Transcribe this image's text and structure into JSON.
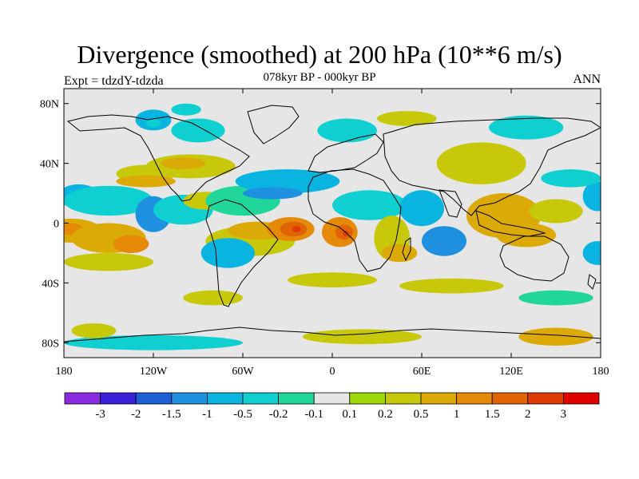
{
  "chart_data": {
    "type": "heatmap",
    "title": "Divergence (smoothed) at 200 hPa (10**6 m/s)",
    "subtitle": "078kyr BP - 000kyr BP",
    "left_label": "Expt = tdzdY-tdzda",
    "right_label": "ANN",
    "x_range": [
      -180,
      180
    ],
    "y_range": [
      -90,
      90
    ],
    "x_ticks": [
      {
        "value": -180,
        "label": "180"
      },
      {
        "value": -120,
        "label": "120W"
      },
      {
        "value": -60,
        "label": "60W"
      },
      {
        "value": 0,
        "label": "0"
      },
      {
        "value": 60,
        "label": "60E"
      },
      {
        "value": 120,
        "label": "120E"
      },
      {
        "value": 180,
        "label": "180"
      }
    ],
    "y_ticks": [
      {
        "value": 80,
        "label": "80N"
      },
      {
        "value": 40,
        "label": "40N"
      },
      {
        "value": 0,
        "label": "0"
      },
      {
        "value": -40,
        "label": "40S"
      },
      {
        "value": -80,
        "label": "80S"
      }
    ],
    "colorbar": {
      "levels": [
        "-3",
        "-2",
        "-1.5",
        "-1",
        "-0.5",
        "-0.2",
        "-0.1",
        "0.1",
        "0.2",
        "0.5",
        "1",
        "1.5",
        "2",
        "3"
      ],
      "colors": [
        "#8a2be2",
        "#3a1fd8",
        "#1e5fd6",
        "#1f8fe0",
        "#0ab4e0",
        "#10cfd0",
        "#20d69a",
        "#e6e6e6",
        "#9cd80a",
        "#c8c80a",
        "#dcaa06",
        "#e48a06",
        "#e06406",
        "#e03a06",
        "#e00000"
      ]
    },
    "blobs": [
      {
        "lon": -175,
        "lat": -5,
        "rx": 20,
        "ry": 8,
        "level": 10
      },
      {
        "lon": -175,
        "lat": -4,
        "rx": 8,
        "ry": 4,
        "level": 11
      },
      {
        "lon": -150,
        "lat": -10,
        "rx": 25,
        "ry": 10,
        "level": 10
      },
      {
        "lon": -135,
        "lat": -14,
        "rx": 12,
        "ry": 6,
        "level": 11
      },
      {
        "lon": -150,
        "lat": -26,
        "rx": 30,
        "ry": 6,
        "level": 9
      },
      {
        "lon": -170,
        "lat": 18,
        "rx": 14,
        "ry": 8,
        "level": 4
      },
      {
        "lon": -150,
        "lat": 15,
        "rx": 30,
        "ry": 10,
        "level": 5
      },
      {
        "lon": -120,
        "lat": 6,
        "rx": 12,
        "ry": 12,
        "level": 3
      },
      {
        "lon": -100,
        "lat": 9,
        "rx": 20,
        "ry": 10,
        "level": 5
      },
      {
        "lon": -125,
        "lat": 33,
        "rx": 20,
        "ry": 6,
        "level": 9
      },
      {
        "lon": -125,
        "lat": 28,
        "rx": 20,
        "ry": 4,
        "level": 10
      },
      {
        "lon": -95,
        "lat": 38,
        "rx": 30,
        "ry": 8,
        "level": 9
      },
      {
        "lon": -100,
        "lat": 40,
        "rx": 15,
        "ry": 4,
        "level": 10
      },
      {
        "lon": -85,
        "lat": 15,
        "rx": 15,
        "ry": 6,
        "level": 9
      },
      {
        "lon": -120,
        "lat": 69,
        "rx": 12,
        "ry": 7,
        "level": 4
      },
      {
        "lon": -120,
        "lat": 67,
        "rx": 5,
        "ry": 3,
        "level": 5
      },
      {
        "lon": -90,
        "lat": 62,
        "rx": 18,
        "ry": 8,
        "level": 5
      },
      {
        "lon": -98,
        "lat": 76,
        "rx": 10,
        "ry": 4,
        "level": 5
      },
      {
        "lon": -60,
        "lat": 15,
        "rx": 25,
        "ry": 10,
        "level": 6
      },
      {
        "lon": -55,
        "lat": -12,
        "rx": 30,
        "ry": 10,
        "level": 9
      },
      {
        "lon": -50,
        "lat": -5,
        "rx": 20,
        "ry": 6,
        "level": 10
      },
      {
        "lon": -28,
        "lat": -4,
        "rx": 16,
        "ry": 8,
        "level": 11
      },
      {
        "lon": -26,
        "lat": -4,
        "rx": 9,
        "ry": 5,
        "level": 12
      },
      {
        "lon": -24,
        "lat": -4,
        "rx": 3,
        "ry": 2,
        "level": 13
      },
      {
        "lon": 5,
        "lat": -6,
        "rx": 12,
        "ry": 10,
        "level": 11
      },
      {
        "lon": 8,
        "lat": -6,
        "rx": 6,
        "ry": 5,
        "level": 12
      },
      {
        "lon": 9,
        "lat": -7,
        "rx": 2,
        "ry": 2,
        "level": 13
      },
      {
        "lon": -70,
        "lat": -20,
        "rx": 18,
        "ry": 10,
        "level": 4
      },
      {
        "lon": -30,
        "lat": 28,
        "rx": 35,
        "ry": 8,
        "level": 4
      },
      {
        "lon": -40,
        "lat": 20,
        "rx": 20,
        "ry": 4,
        "level": 3
      },
      {
        "lon": 25,
        "lat": 12,
        "rx": 25,
        "ry": 10,
        "level": 5
      },
      {
        "lon": 60,
        "lat": 10,
        "rx": 15,
        "ry": 12,
        "level": 4
      },
      {
        "lon": 75,
        "lat": -12,
        "rx": 15,
        "ry": 10,
        "level": 3
      },
      {
        "lon": 40,
        "lat": -10,
        "rx": 12,
        "ry": 15,
        "level": 9
      },
      {
        "lon": 45,
        "lat": -20,
        "rx": 12,
        "ry": 6,
        "level": 10
      },
      {
        "lon": 100,
        "lat": 40,
        "rx": 30,
        "ry": 14,
        "level": 9
      },
      {
        "lon": 115,
        "lat": 5,
        "rx": 25,
        "ry": 15,
        "level": 10
      },
      {
        "lon": 130,
        "lat": -8,
        "rx": 20,
        "ry": 8,
        "level": 10
      },
      {
        "lon": 150,
        "lat": 8,
        "rx": 18,
        "ry": 8,
        "level": 9
      },
      {
        "lon": 178,
        "lat": 18,
        "rx": 10,
        "ry": 10,
        "level": 4
      },
      {
        "lon": 178,
        "lat": -20,
        "rx": 10,
        "ry": 8,
        "level": 4
      },
      {
        "lon": 0,
        "lat": -38,
        "rx": 30,
        "ry": 5,
        "level": 9
      },
      {
        "lon": 80,
        "lat": -42,
        "rx": 35,
        "ry": 5,
        "level": 9
      },
      {
        "lon": 150,
        "lat": -50,
        "rx": 25,
        "ry": 5,
        "level": 6
      },
      {
        "lon": -80,
        "lat": -50,
        "rx": 20,
        "ry": 5,
        "level": 9
      },
      {
        "lon": 10,
        "lat": 62,
        "rx": 20,
        "ry": 8,
        "level": 5
      },
      {
        "lon": 50,
        "lat": 70,
        "rx": 20,
        "ry": 5,
        "level": 9
      },
      {
        "lon": 130,
        "lat": 64,
        "rx": 25,
        "ry": 8,
        "level": 5
      },
      {
        "lon": 160,
        "lat": 30,
        "rx": 20,
        "ry": 6,
        "level": 5
      },
      {
        "lon": -120,
        "lat": -80,
        "rx": 60,
        "ry": 5,
        "level": 5
      },
      {
        "lon": 20,
        "lat": -76,
        "rx": 40,
        "ry": 5,
        "level": 9
      },
      {
        "lon": 150,
        "lat": -76,
        "rx": 25,
        "ry": 6,
        "level": 10
      },
      {
        "lon": -160,
        "lat": -72,
        "rx": 15,
        "ry": 5,
        "level": 9
      }
    ]
  }
}
